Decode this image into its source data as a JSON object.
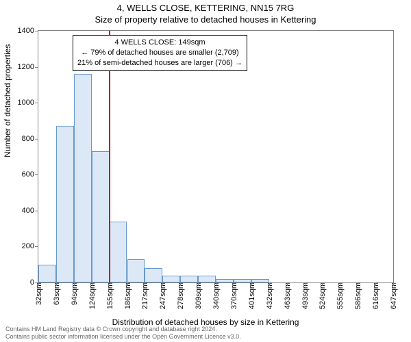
{
  "title_line1": "4, WELLS CLOSE, KETTERING, NN15 7RG",
  "title_line2": "Size of property relative to detached houses in Kettering",
  "ylabel": "Number of detached properties",
  "xlabel": "Distribution of detached houses by size in Kettering",
  "y_ticks": [
    0,
    200,
    400,
    600,
    800,
    1000,
    1200,
    1400
  ],
  "y_max": 1400,
  "x_tick_labels": [
    "32sqm",
    "63sqm",
    "94sqm",
    "124sqm",
    "155sqm",
    "186sqm",
    "217sqm",
    "247sqm",
    "278sqm",
    "309sqm",
    "340sqm",
    "370sqm",
    "401sqm",
    "432sqm",
    "463sqm",
    "493sqm",
    "524sqm",
    "555sqm",
    "586sqm",
    "616sqm",
    "647sqm"
  ],
  "bars": [
    100,
    870,
    1160,
    730,
    340,
    130,
    80,
    40,
    40,
    40,
    20,
    20,
    20,
    0,
    0,
    0,
    0,
    0,
    0,
    0
  ],
  "bar_fill": "#dce8f6",
  "bar_stroke": "#6699cc",
  "marker_color": "#cc0000",
  "marker_bar_index": 3,
  "annotation": {
    "line1": "4 WELLS CLOSE: 149sqm",
    "line2": "← 79% of detached houses are smaller (2,709)",
    "line3": "21% of semi-detached houses are larger (706) →"
  },
  "footer_line1": "Contains HM Land Registry data © Crown copyright and database right 2024.",
  "footer_line2": "Contains public sector information licensed under the Open Government Licence v3.0."
}
